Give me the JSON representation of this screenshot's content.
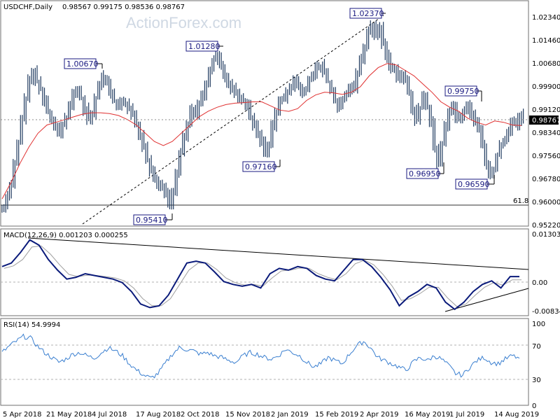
{
  "header": {
    "symbol": "USDCHF,Daily",
    "ohlc": "0.98567 0.99175 0.98536 0.98767"
  },
  "watermark": "ActionForex.com",
  "colors": {
    "price": "#1f3a5f",
    "ma": "#e03030",
    "macd_line": "#0a1a7a",
    "macd_signal": "#a0a0a0",
    "rsi": "#3a7fd0",
    "frame": "#6f6f6f",
    "guide": "#000000"
  },
  "chart_data": [
    {
      "type": "ohlc",
      "title": "USDCHF,Daily",
      "ylim": [
        0.9498,
        1.0297
      ],
      "y_ticks": [
        "1.02340",
        "1.01460",
        "1.00680",
        "0.99900",
        "0.99120",
        "0.98340",
        "0.97560",
        "0.96780",
        "0.96000",
        "0.95220"
      ],
      "current_price": "0.98767",
      "fib_level": {
        "label": "61.8",
        "value": 0.959
      },
      "annotations": [
        {
          "text": "1.00670",
          "value": 1.0067
        },
        {
          "text": "1.01280",
          "value": 1.0128
        },
        {
          "text": "0.95410",
          "value": 0.9541
        },
        {
          "text": "0.97160",
          "value": 0.9716
        },
        {
          "text": "1.02370",
          "value": 1.0237
        },
        {
          "text": "0.96950",
          "value": 0.9695
        },
        {
          "text": "0.99750",
          "value": 0.9975
        },
        {
          "text": "0.96590",
          "value": 0.9659
        }
      ],
      "close_path": [
        [
          0.956,
          0.96
        ],
        [
          0.964,
          0.972
        ],
        [
          0.979,
          0.988
        ],
        [
          0.996,
          1.003
        ],
        [
          1.006,
          1.002
        ],
        [
          0.999,
          0.995
        ],
        [
          0.991,
          0.988
        ],
        [
          0.985,
          0.983
        ],
        [
          0.986,
          0.989
        ],
        [
          0.993,
          0.997
        ],
        [
          0.999,
          0.996
        ],
        [
          0.992,
          0.988
        ],
        [
          0.99,
          0.996
        ],
        [
          1.001,
          1.004
        ],
        [
          1.002,
          0.998
        ],
        [
          0.995,
          0.993
        ],
        [
          0.995,
          0.994
        ],
        [
          0.992,
          0.99
        ],
        [
          0.987,
          0.983
        ],
        [
          0.978,
          0.973
        ],
        [
          0.969,
          0.966
        ],
        [
          0.964,
          0.963
        ],
        [
          0.961,
          0.956
        ],
        [
          0.961,
          0.968
        ],
        [
          0.976,
          0.982
        ],
        [
          0.987,
          0.992
        ],
        [
          0.99,
          0.994
        ],
        [
          0.997,
          1.001
        ],
        [
          1.006,
          1.01
        ],
        [
          1.012,
          1.008
        ],
        [
          1.004,
          1.001
        ],
        [
          0.999,
          0.998
        ],
        [
          0.996,
          0.995
        ],
        [
          0.993,
          0.989
        ],
        [
          0.986,
          0.983
        ],
        [
          0.98,
          0.976
        ],
        [
          0.979,
          0.986
        ],
        [
          0.991,
          0.995
        ],
        [
          0.996,
          0.998
        ],
        [
          1.0,
          1.003
        ],
        [
          1.001,
          0.998
        ],
        [
          0.999,
          1.002
        ],
        [
          1.004,
          1.007
        ],
        [
          1.008,
          1.005
        ],
        [
          1.002,
          0.999
        ],
        [
          0.995,
          0.993
        ],
        [
          0.996,
          0.998
        ],
        [
          1.0,
          0.999
        ],
        [
          1.005,
          1.01
        ],
        [
          1.015,
          1.02
        ],
        [
          1.023,
          1.019
        ],
        [
          1.022,
          1.016
        ],
        [
          1.011,
          1.007
        ],
        [
          1.006,
          1.003
        ],
        [
          1.005,
          1.003
        ],
        [
          0.998,
          0.992
        ],
        [
          0.988,
          0.992
        ],
        [
          0.997,
          0.993
        ],
        [
          0.988,
          0.978
        ],
        [
          0.972,
          0.979
        ],
        [
          0.985,
          0.991
        ],
        [
          0.993,
          0.989
        ],
        [
          0.988,
          0.991
        ],
        [
          0.993,
          0.99
        ],
        [
          0.987,
          0.984
        ],
        [
          0.979,
          0.972
        ],
        [
          0.968,
          0.97
        ],
        [
          0.975,
          0.979
        ],
        [
          0.981,
          0.984
        ],
        [
          0.987,
          0.986
        ],
        [
          0.99,
          0.9877
        ]
      ],
      "ma_path": [
        0.959,
        0.965,
        0.972,
        0.978,
        0.983,
        0.986,
        0.987,
        0.988,
        0.989,
        0.99,
        0.9905,
        0.9905,
        0.9902,
        0.9895,
        0.988,
        0.986,
        0.983,
        0.98,
        0.9785,
        0.98,
        0.983,
        0.986,
        0.989,
        0.991,
        0.9925,
        0.9935,
        0.994,
        0.9942,
        0.9945,
        0.9945,
        0.993,
        0.9915,
        0.991,
        0.992,
        0.995,
        0.997,
        0.998,
        0.9978,
        0.9972,
        0.998,
        1.0,
        1.004,
        1.007,
        1.0085,
        1.008,
        1.006,
        1.004,
        1.001,
        0.998,
        0.9945,
        0.9925,
        0.991,
        0.9885,
        0.987,
        0.986,
        0.9875,
        0.987,
        0.986,
        0.9858
      ]
    },
    {
      "type": "line",
      "title": "MACD(12,26,9) 0.001203 0.000255",
      "ylim": [
        -0.009,
        0.0136
      ],
      "y_ticks": [
        "0.013034",
        "0.00",
        "-0.00834"
      ],
      "series": [
        {
          "name": "MACD",
          "values": [
            0.004,
            0.005,
            0.008,
            0.0115,
            0.01,
            0.006,
            0.003,
            0.0005,
            0.001,
            0.002,
            0.0015,
            0.001,
            0.0005,
            -0.0005,
            -0.003,
            -0.0065,
            -0.0075,
            -0.007,
            -0.004,
            0.0005,
            0.005,
            0.0055,
            0.005,
            0.0025,
            -0.0002,
            -0.001,
            -0.0015,
            -0.001,
            -0.002,
            0.002,
            0.0035,
            0.003,
            0.004,
            0.0035,
            0.0015,
            0.0005,
            0.0,
            0.003,
            0.006,
            0.006,
            0.004,
            0.001,
            -0.0025,
            -0.007,
            -0.0045,
            -0.003,
            -0.001,
            -0.002,
            -0.006,
            -0.008,
            -0.006,
            -0.003,
            -0.001,
            0.0,
            -0.002,
            0.0012,
            0.0012
          ]
        },
        {
          "name": "Signal",
          "values": [
            0.0035,
            0.0042,
            0.006,
            0.0095,
            0.0098,
            0.0075,
            0.0045,
            0.0018,
            0.0012,
            0.0016,
            0.0015,
            0.0012,
            0.0008,
            0.0,
            -0.002,
            -0.005,
            -0.007,
            -0.007,
            -0.005,
            -0.001,
            0.003,
            0.005,
            0.005,
            0.0032,
            0.0008,
            -0.0005,
            -0.0012,
            -0.001,
            -0.0015,
            0.0008,
            0.0028,
            0.003,
            0.0036,
            0.0035,
            0.002,
            0.001,
            0.0003,
            0.002,
            0.0048,
            0.0058,
            0.0045,
            0.0018,
            -0.0015,
            -0.0055,
            -0.005,
            -0.0036,
            -0.0018,
            -0.0018,
            -0.0048,
            -0.0072,
            -0.0065,
            -0.004,
            -0.0018,
            -0.0005,
            -0.0012,
            0.0003,
            0.0003
          ]
        }
      ]
    },
    {
      "type": "line",
      "title": "RSI(14) 54.9994",
      "ylim": [
        0,
        100
      ],
      "y_ticks": [
        "100",
        "70",
        "30",
        "0"
      ],
      "series": [
        {
          "name": "RSI(14)",
          "values": [
            62,
            70,
            76,
            82,
            80,
            70,
            62,
            56,
            50,
            54,
            60,
            62,
            58,
            55,
            62,
            68,
            64,
            58,
            48,
            40,
            34,
            30,
            36,
            48,
            60,
            68,
            66,
            64,
            60,
            62,
            58,
            56,
            52,
            50,
            58,
            62,
            60,
            56,
            54,
            58,
            66,
            62,
            58,
            50,
            44,
            48,
            56,
            52,
            48,
            60,
            70,
            76,
            68,
            56,
            52,
            48,
            44,
            40,
            50,
            56,
            52,
            58,
            54,
            46,
            36,
            34,
            44,
            52,
            56,
            50,
            48,
            54,
            58,
            55
          ]
        }
      ]
    }
  ],
  "x_axis": {
    "labels": [
      "5 Apr 2018",
      "21 May 2018",
      "4 Jul 2018",
      "17 Aug 2018",
      "2 Oct 2018",
      "15 Nov 2018",
      "2 Jan 2019",
      "15 Feb 2019",
      "2 Apr 2019",
      "16 May 2019",
      "1 Jul 2019",
      "14 Aug 2019"
    ]
  }
}
